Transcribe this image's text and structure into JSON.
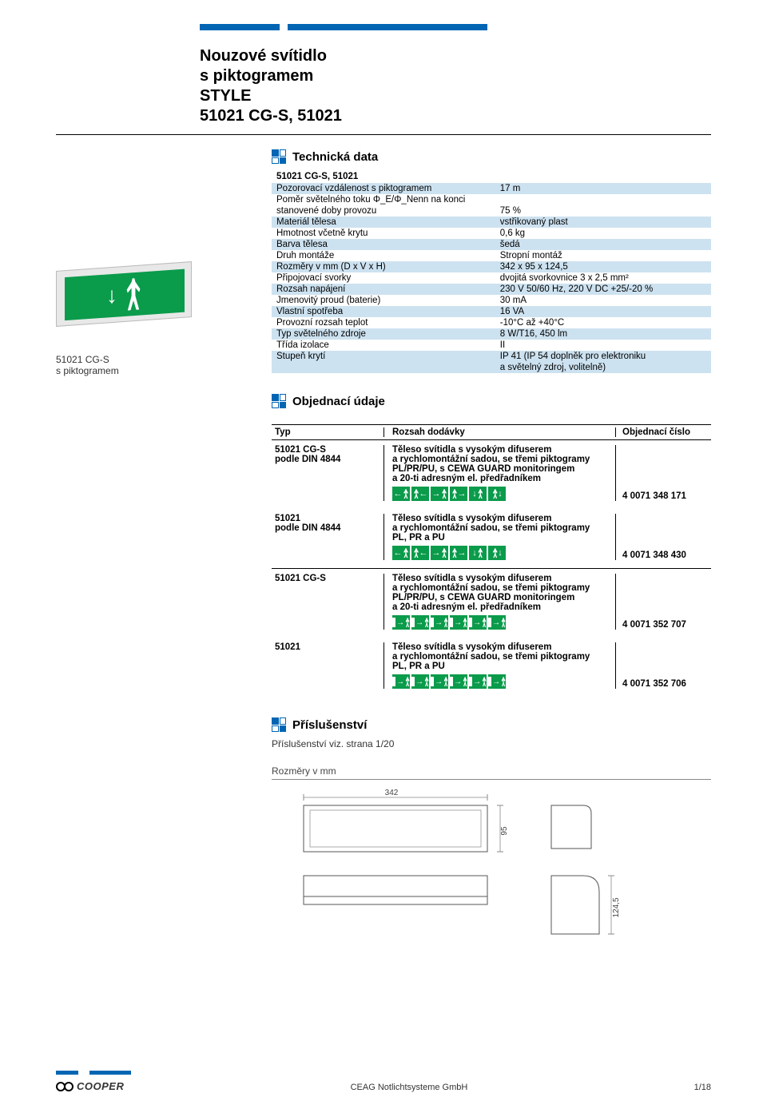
{
  "colors": {
    "brand_blue": "#0066b3",
    "shade_blue": "#cde2f0",
    "exit_green": "#0a9b4b"
  },
  "title": {
    "l1": "Nouzové svítidlo",
    "l2": "s piktogramem",
    "l3": "STYLE",
    "l4": "51021 CG-S, 51021"
  },
  "caption": {
    "l1": "51021 CG-S",
    "l2": "s piktogramem"
  },
  "sections": {
    "tech": "Technická data",
    "order": "Objednací údaje",
    "access": "Příslušenství"
  },
  "specs": {
    "header": "51021 CG-S, 51021",
    "rows": [
      {
        "k": "Pozorovací vzdálenost s piktogramem",
        "v": "17 m",
        "shade": true
      },
      {
        "k": "Poměr světelného toku Φ_E/Φ_Nenn na konci",
        "v": "",
        "shade": false
      },
      {
        "k": "stanovené doby provozu",
        "v": "75 %",
        "shade": false
      },
      {
        "k": "Materiál tělesa",
        "v": "vstřikovaný plast",
        "shade": true
      },
      {
        "k": "Hmotnost včetně krytu",
        "v": "0,6 kg",
        "shade": false
      },
      {
        "k": "Barva tělesa",
        "v": "šedá",
        "shade": true
      },
      {
        "k": "Druh montáže",
        "v": "Stropní montáž",
        "shade": false
      },
      {
        "k": "Rozměry v mm (D x V x H)",
        "v": "342 x 95 x 124,5",
        "shade": true
      },
      {
        "k": "Připojovací svorky",
        "v": "dvojitá svorkovnice 3 x 2,5 mm²",
        "shade": false
      },
      {
        "k": "Rozsah napájení",
        "v": "230 V 50/60 Hz, 220 V DC +25/-20 %",
        "shade": true
      },
      {
        "k": "Jmenovitý proud (baterie)",
        "v": "30 mA",
        "shade": false
      },
      {
        "k": "Vlastní spotřeba",
        "v": "16 VA",
        "shade": true
      },
      {
        "k": "Provozní rozsah teplot",
        "v": "-10°C až +40°C",
        "shade": false
      },
      {
        "k": "Typ světelného zdroje",
        "v": "8 W/T16, 450 lm",
        "shade": true
      },
      {
        "k": "Třída izolace",
        "v": "II",
        "shade": false
      },
      {
        "k": "Stupeň krytí",
        "v": "IP 41 (IP 54 doplněk pro elektroniku",
        "shade": true
      },
      {
        "k": "",
        "v": "a světelný zdroj, volitelně)",
        "shade": true
      }
    ]
  },
  "order": {
    "head": {
      "c1": "Typ",
      "c2": "Rozsah dodávky",
      "c3": "Objednací číslo"
    },
    "rows": [
      {
        "c1a": "51021 CG-S",
        "c1b": "podle DIN 4844",
        "c2": "Těleso svítidla s vysokým difuserem\na rychlomontážní sadou, se třemi piktogramy\nPL/PR/PU, s CEWA GUARD monitoringem\na 20-ti adresným el. předřadníkem",
        "c3": "4 0071 348 171",
        "picto": "arrows"
      },
      {
        "c1a": "51021",
        "c1b": "podle DIN 4844",
        "c2": "Těleso svítidla s vysokým difuserem\na rychlomontážní sadou, se třemi piktogramy\nPL, PR a PU",
        "c3": "4 0071 348 430",
        "picto": "arrows"
      },
      {
        "c1a": "51021 CG-S",
        "c1b": "",
        "c2": "Těleso svítidla s vysokým difuserem\na rychlomontážní sadou, se třemi piktogramy\nPL/PR/PU, s CEWA GUARD monitoringem\na 20-ti adresným el. předřadníkem",
        "c3": "4 0071 352 707",
        "picto": "door"
      },
      {
        "c1a": "51021",
        "c1b": "",
        "c2": "Těleso svítidla s vysokým difuserem\na rychlomontážní sadou, se třemi piktogramy\nPL, PR a PU",
        "c3": "4 0071 352 706",
        "picto": "door"
      }
    ]
  },
  "access_text": "Příslušenství viz. strana 1/20",
  "dims": {
    "label": "Rozměry v mm",
    "w": "342",
    "h": "95",
    "d": "124,5"
  },
  "footer": {
    "logo": "COOPER",
    "center": "CEAG Notlichtsysteme GmbH",
    "page": "1/18"
  }
}
